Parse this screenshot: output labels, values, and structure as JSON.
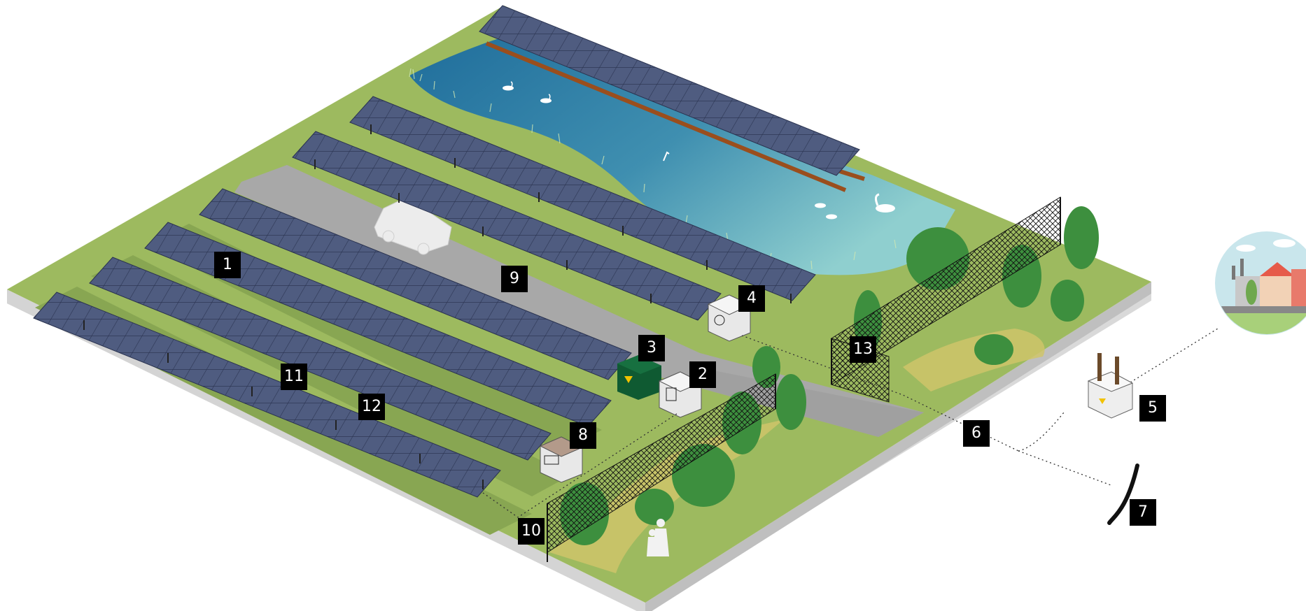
{
  "labels": {
    "l1": "1",
    "l2": "2",
    "l3": "3",
    "l4": "4",
    "l5": "5",
    "l6": "6",
    "l7": "7",
    "l8": "8",
    "l9": "9",
    "l10": "10",
    "l11": "11",
    "l12": "12",
    "l13": "13"
  },
  "colors": {
    "ground": "#9dba5f",
    "ground_dark": "#88a652",
    "road": "#a6a6a6",
    "water": "#2f7fa8",
    "panel": "#4d5a7c",
    "fence": "#1a1a1a",
    "tree": "#3d8f3e",
    "transformer_green": "#0f5a32",
    "path": "#cfc46a",
    "base_side": "#d6d6d6"
  },
  "icons": {
    "panel": "solar-panel-icon",
    "car": "car-icon",
    "bird": "swan-icon",
    "transformer": "transformer-icon",
    "meter": "meter-icon",
    "inverter": "inverter-icon",
    "battery": "battery-icon",
    "cable": "cable-icon",
    "village": "village-icon",
    "people": "pedestrians-icon"
  }
}
